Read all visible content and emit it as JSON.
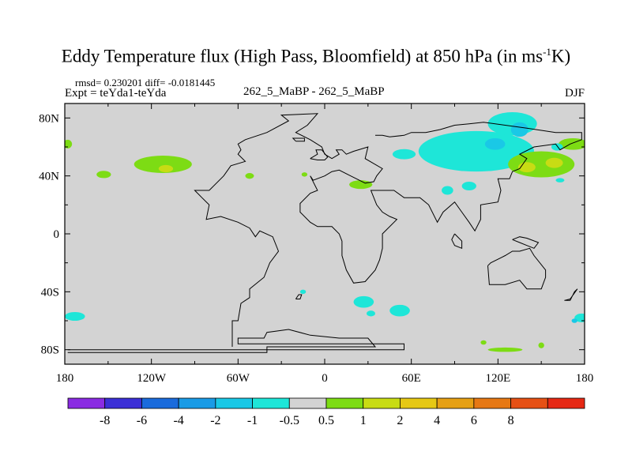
{
  "chart_data": {
    "type": "heatmap",
    "title_main": "Eddy Temperature flux (High Pass, Bloomfield) at 850 hPa (in ms",
    "title_exp": "-1",
    "title_end": "K)",
    "stats_line": "rmsd= 0.230201 diff= -0.0181445",
    "experiment_label": "Expt = teYda1-teYda",
    "case_label": "262_5_MaBP - 262_5_MaBP",
    "season": "DJF",
    "x_ticks": [
      {
        "value": -180,
        "label": "180"
      },
      {
        "value": -120,
        "label": "120W"
      },
      {
        "value": -60,
        "label": "60W"
      },
      {
        "value": 0,
        "label": "0"
      },
      {
        "value": 60,
        "label": "60E"
      },
      {
        "value": 120,
        "label": "120E"
      },
      {
        "value": 180,
        "label": "180"
      }
    ],
    "y_ticks": [
      {
        "value": 80,
        "label": "80N"
      },
      {
        "value": 40,
        "label": "40N"
      },
      {
        "value": 0,
        "label": "0"
      },
      {
        "value": -40,
        "label": "40S"
      },
      {
        "value": -80,
        "label": "80S"
      }
    ],
    "xlim": [
      -180,
      180
    ],
    "ylim": [
      -90,
      90
    ],
    "background_color": "#d3d3d3",
    "colorbar": {
      "colors": [
        "#8a2be2",
        "#3b2fd6",
        "#1a6bdc",
        "#1a9be6",
        "#1ac8e6",
        "#1ee6d8",
        "#d3d3d3",
        "#7ddc14",
        "#c8dc14",
        "#e6c814",
        "#e6a014",
        "#e67814",
        "#e65014",
        "#e62814"
      ],
      "labels": [
        "-8",
        "-6",
        "-4",
        "-2",
        "-1",
        "-0.5",
        "0.5",
        "1",
        "2",
        "4",
        "6",
        "8"
      ]
    },
    "anomaly_regions": [
      {
        "lon": -112,
        "lat": 48,
        "rx": 20,
        "ry": 6,
        "color": "#7ddc14"
      },
      {
        "lon": -110,
        "lat": 45,
        "rx": 5,
        "ry": 2.5,
        "color": "#c8dc14"
      },
      {
        "lon": -178,
        "lat": 62,
        "rx": 3,
        "ry": 3,
        "color": "#7ddc14"
      },
      {
        "lon": -153,
        "lat": 41,
        "rx": 5,
        "ry": 2.5,
        "color": "#7ddc14"
      },
      {
        "lon": -52,
        "lat": 40,
        "rx": 3,
        "ry": 2,
        "color": "#7ddc14"
      },
      {
        "lon": -14,
        "lat": 41,
        "rx": 2,
        "ry": 1.5,
        "color": "#7ddc14"
      },
      {
        "lon": 25,
        "lat": 34,
        "rx": 8,
        "ry": 3,
        "color": "#7ddc14"
      },
      {
        "lon": 55,
        "lat": 55,
        "rx": 8,
        "ry": 3.5,
        "color": "#1ee6d8"
      },
      {
        "lon": 105,
        "lat": 57,
        "rx": 40,
        "ry": 14,
        "color": "#1ee6d8"
      },
      {
        "lon": 130,
        "lat": 76,
        "rx": 17,
        "ry": 8,
        "color": "#1ee6d8"
      },
      {
        "lon": 135,
        "lat": 72,
        "rx": 6,
        "ry": 5,
        "color": "#1ac8e6"
      },
      {
        "lon": 118,
        "lat": 62,
        "rx": 7,
        "ry": 4,
        "color": "#1ac8e6"
      },
      {
        "lon": 100,
        "lat": 33,
        "rx": 5,
        "ry": 3,
        "color": "#1ee6d8"
      },
      {
        "lon": 85,
        "lat": 30,
        "rx": 4,
        "ry": 3,
        "color": "#1ee6d8"
      },
      {
        "lon": 150,
        "lat": 48,
        "rx": 23,
        "ry": 9,
        "color": "#7ddc14"
      },
      {
        "lon": 140,
        "lat": 46,
        "rx": 6,
        "ry": 3.5,
        "color": "#c8dc14"
      },
      {
        "lon": 159,
        "lat": 49,
        "rx": 6,
        "ry": 3.5,
        "color": "#c8dc14"
      },
      {
        "lon": 172,
        "lat": 62,
        "rx": 10,
        "ry": 4,
        "color": "#7ddc14"
      },
      {
        "lon": 161,
        "lat": 60,
        "rx": 4,
        "ry": 2.5,
        "color": "#1ee6d8"
      },
      {
        "lon": 163,
        "lat": 37,
        "rx": 3,
        "ry": 1.5,
        "color": "#1ee6d8"
      },
      {
        "lon": -15,
        "lat": -40,
        "rx": 2,
        "ry": 1.5,
        "color": "#1ee6d8"
      },
      {
        "lon": 27,
        "lat": -47,
        "rx": 7,
        "ry": 4,
        "color": "#1ee6d8"
      },
      {
        "lon": 32,
        "lat": -55,
        "rx": 3,
        "ry": 2,
        "color": "#1ee6d8"
      },
      {
        "lon": 52,
        "lat": -53,
        "rx": 7,
        "ry": 4,
        "color": "#1ee6d8"
      },
      {
        "lon": -173,
        "lat": -57,
        "rx": 7,
        "ry": 3,
        "color": "#1ee6d8"
      },
      {
        "lon": 178,
        "lat": -58,
        "rx": 5,
        "ry": 3,
        "color": "#1ee6d8"
      },
      {
        "lon": 173,
        "lat": -60,
        "rx": 2,
        "ry": 1.5,
        "color": "#1ac8e6"
      },
      {
        "lon": 125,
        "lat": -80,
        "rx": 12,
        "ry": 1.5,
        "color": "#7ddc14"
      },
      {
        "lon": 110,
        "lat": -75,
        "rx": 2,
        "ry": 1.5,
        "color": "#7ddc14"
      },
      {
        "lon": 150,
        "lat": -77,
        "rx": 2,
        "ry": 2,
        "color": "#7ddc14"
      }
    ],
    "coastlines": [
      [
        [
          -178,
          -80
        ],
        [
          -170,
          -80
        ],
        [
          -140,
          -80
        ],
        [
          -100,
          -80
        ],
        [
          -65,
          -80
        ],
        [
          55,
          -80
        ],
        [
          55,
          -76
        ],
        [
          -60,
          -76
        ],
        [
          -60,
          -72
        ],
        [
          -42,
          -72
        ],
        [
          -40,
          -68
        ],
        [
          -25,
          -66
        ],
        [
          -10,
          -70
        ],
        [
          10,
          -72
        ],
        [
          30,
          -72
        ],
        [
          35,
          -78
        ],
        [
          -40,
          -78
        ],
        [
          -40,
          -82
        ],
        [
          -178,
          -82
        ]
      ],
      [
        [
          -64,
          -78
        ],
        [
          -64,
          -60
        ],
        [
          -60,
          -60
        ],
        [
          -58,
          -48
        ],
        [
          -52,
          -44
        ],
        [
          -52,
          -38
        ],
        [
          -42,
          -30
        ],
        [
          -38,
          -20
        ],
        [
          -32,
          -12
        ],
        [
          -36,
          -2
        ],
        [
          -45,
          2
        ],
        [
          -48,
          -2
        ],
        [
          -52,
          4
        ],
        [
          -60,
          8
        ],
        [
          -72,
          12
        ],
        [
          -82,
          10
        ],
        [
          -80,
          20
        ],
        [
          -85,
          25
        ],
        [
          -90,
          30
        ],
        [
          -80,
          30
        ],
        [
          -70,
          40
        ],
        [
          -65,
          47
        ],
        [
          -55,
          50
        ],
        [
          -60,
          55
        ],
        [
          -58,
          58
        ],
        [
          -60,
          62
        ],
        [
          -55,
          65
        ],
        [
          -40,
          70
        ],
        [
          -25,
          78
        ],
        [
          -30,
          82
        ],
        [
          -5,
          83
        ],
        [
          -12,
          75
        ],
        [
          -20,
          70
        ],
        [
          -10,
          65
        ],
        [
          -2,
          60
        ],
        [
          0,
          55
        ],
        [
          5,
          52
        ],
        [
          10,
          55
        ],
        [
          8,
          58
        ],
        [
          12,
          58
        ],
        [
          15,
          55
        ],
        [
          20,
          57
        ],
        [
          30,
          60
        ],
        [
          28,
          52
        ],
        [
          40,
          45
        ],
        [
          36,
          40
        ],
        [
          34,
          36
        ],
        [
          28,
          35
        ],
        [
          22,
          38
        ],
        [
          18,
          40
        ],
        [
          10,
          44
        ],
        [
          5,
          43
        ],
        [
          0,
          40
        ],
        [
          -8,
          37
        ],
        [
          -10,
          40
        ],
        [
          -5,
          30
        ],
        [
          -10,
          28
        ],
        [
          -17,
          21
        ],
        [
          -17,
          15
        ],
        [
          -10,
          8
        ],
        [
          -5,
          5
        ],
        [
          5,
          5
        ],
        [
          10,
          0
        ],
        [
          12,
          -5
        ],
        [
          12,
          -15
        ],
        [
          15,
          -25
        ],
        [
          20,
          -34
        ],
        [
          28,
          -33
        ],
        [
          35,
          -25
        ],
        [
          38,
          -18
        ],
        [
          40,
          -10
        ],
        [
          40,
          0
        ],
        [
          50,
          10
        ],
        [
          45,
          12
        ],
        [
          40,
          15
        ],
        [
          36,
          20
        ],
        [
          32,
          30
        ],
        [
          40,
          30
        ],
        [
          48,
          30
        ],
        [
          55,
          25
        ],
        [
          60,
          25
        ],
        [
          66,
          25
        ],
        [
          72,
          20
        ],
        [
          78,
          8
        ],
        [
          82,
          15
        ],
        [
          90,
          22
        ],
        [
          95,
          15
        ],
        [
          100,
          8
        ],
        [
          104,
          2
        ],
        [
          108,
          10
        ],
        [
          108,
          20
        ],
        [
          120,
          22
        ],
        [
          122,
          30
        ],
        [
          120,
          38
        ],
        [
          128,
          38
        ],
        [
          130,
          43
        ],
        [
          135,
          45
        ],
        [
          140,
          52
        ],
        [
          135,
          55
        ],
        [
          145,
          60
        ],
        [
          160,
          62
        ],
        [
          163,
          58
        ],
        [
          170,
          62
        ],
        [
          178,
          65
        ],
        [
          178,
          70
        ],
        [
          160,
          70
        ],
        [
          140,
          73
        ],
        [
          110,
          77
        ],
        [
          100,
          76
        ],
        [
          90,
          75
        ],
        [
          80,
          72
        ],
        [
          70,
          70
        ],
        [
          60,
          70
        ],
        [
          55,
          68
        ],
        [
          45,
          67
        ],
        [
          40,
          68
        ],
        [
          35,
          68
        ]
      ],
      [
        [
          90,
          0
        ],
        [
          95,
          -5
        ],
        [
          95,
          -10
        ],
        [
          90,
          -8
        ],
        [
          88,
          -4
        ],
        [
          90,
          0
        ]
      ],
      [
        [
          113,
          -22
        ],
        [
          114,
          -35
        ],
        [
          125,
          -35
        ],
        [
          135,
          -32
        ],
        [
          140,
          -38
        ],
        [
          150,
          -38
        ],
        [
          153,
          -30
        ],
        [
          153,
          -25
        ],
        [
          145,
          -15
        ],
        [
          142,
          -10
        ],
        [
          135,
          -12
        ],
        [
          130,
          -12
        ],
        [
          125,
          -15
        ],
        [
          115,
          -20
        ],
        [
          113,
          -22
        ]
      ],
      [
        [
          166,
          -46
        ],
        [
          170,
          -46
        ],
        [
          173,
          -40
        ],
        [
          175,
          -38
        ],
        [
          170,
          -45
        ],
        [
          166,
          -46
        ]
      ],
      [
        [
          130,
          -4
        ],
        [
          135,
          -2
        ],
        [
          140,
          -3
        ],
        [
          148,
          -6
        ],
        [
          145,
          -10
        ],
        [
          140,
          -8
        ],
        [
          135,
          -6
        ],
        [
          130,
          -4
        ]
      ],
      [
        [
          -20,
          64
        ],
        [
          -14,
          64
        ],
        [
          -14,
          66
        ],
        [
          -22,
          66
        ],
        [
          -20,
          64
        ]
      ],
      [
        [
          -10,
          52
        ],
        [
          -5,
          51
        ],
        [
          0,
          51
        ],
        [
          2,
          53
        ],
        [
          -2,
          58
        ],
        [
          -6,
          58
        ],
        [
          -5,
          55
        ],
        [
          -10,
          52
        ]
      ],
      [
        [
          -20,
          -45
        ],
        [
          -18,
          -42
        ],
        [
          -16,
          -42
        ],
        [
          -17,
          -45
        ],
        [
          -20,
          -45
        ]
      ]
    ]
  }
}
